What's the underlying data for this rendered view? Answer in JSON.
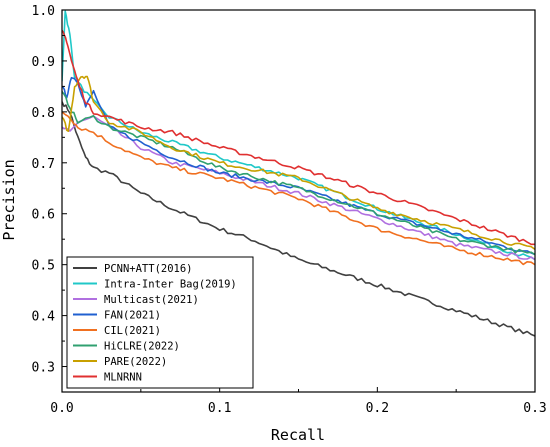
{
  "chart_data": {
    "type": "line",
    "xlabel": "Recall",
    "ylabel": "Precision",
    "xlim": [
      0.0,
      0.3
    ],
    "ylim": [
      0.25,
      1.0
    ],
    "xticks": [
      "0.0",
      "0.1",
      "0.2",
      "0.3"
    ],
    "yticks": [
      "0.3",
      "0.4",
      "0.5",
      "0.6",
      "0.7",
      "0.8",
      "0.9",
      "1.0"
    ],
    "legend_position": "bottom-left",
    "series": [
      {
        "name": "PCNN+ATT(2016)",
        "color": "#404040",
        "x": [
          0.0,
          0.005,
          0.01,
          0.015,
          0.02,
          0.03,
          0.04,
          0.05,
          0.07,
          0.1,
          0.12,
          0.15,
          0.2,
          0.25,
          0.3
        ],
        "y": [
          0.82,
          0.8,
          0.75,
          0.71,
          0.69,
          0.68,
          0.66,
          0.64,
          0.61,
          0.57,
          0.55,
          0.51,
          0.46,
          0.41,
          0.36
        ]
      },
      {
        "name": "Intra-Inter Bag(2019)",
        "color": "#20c8c8",
        "x": [
          0.0,
          0.002,
          0.005,
          0.008,
          0.012,
          0.02,
          0.03,
          0.05,
          0.07,
          0.1,
          0.15,
          0.2,
          0.25,
          0.3
        ],
        "y": [
          0.86,
          1.0,
          0.95,
          0.87,
          0.85,
          0.82,
          0.79,
          0.76,
          0.74,
          0.71,
          0.67,
          0.61,
          0.56,
          0.51
        ]
      },
      {
        "name": "Multicast(2021)",
        "color": "#b070e0",
        "x": [
          0.0,
          0.005,
          0.01,
          0.02,
          0.03,
          0.05,
          0.07,
          0.1,
          0.15,
          0.2,
          0.25,
          0.3
        ],
        "y": [
          0.77,
          0.76,
          0.78,
          0.79,
          0.77,
          0.73,
          0.7,
          0.68,
          0.64,
          0.59,
          0.54,
          0.51
        ]
      },
      {
        "name": "FAN(2021)",
        "color": "#2060d0",
        "x": [
          0.0,
          0.003,
          0.006,
          0.01,
          0.015,
          0.02,
          0.03,
          0.05,
          0.07,
          0.1,
          0.15,
          0.2,
          0.25,
          0.3
        ],
        "y": [
          0.85,
          0.83,
          0.87,
          0.86,
          0.81,
          0.84,
          0.77,
          0.74,
          0.71,
          0.68,
          0.65,
          0.6,
          0.56,
          0.52
        ]
      },
      {
        "name": "CIL(2021)",
        "color": "#f07020",
        "x": [
          0.0,
          0.005,
          0.01,
          0.02,
          0.03,
          0.05,
          0.07,
          0.1,
          0.15,
          0.2,
          0.25,
          0.3
        ],
        "y": [
          0.8,
          0.79,
          0.77,
          0.76,
          0.74,
          0.71,
          0.69,
          0.67,
          0.63,
          0.57,
          0.53,
          0.5
        ]
      },
      {
        "name": "HiCLRE(2022)",
        "color": "#30a070",
        "x": [
          0.0,
          0.005,
          0.01,
          0.02,
          0.03,
          0.05,
          0.07,
          0.1,
          0.15,
          0.2,
          0.25,
          0.3
        ],
        "y": [
          0.84,
          0.81,
          0.78,
          0.79,
          0.77,
          0.75,
          0.73,
          0.69,
          0.65,
          0.6,
          0.55,
          0.52
        ]
      },
      {
        "name": "PARE(2022)",
        "color": "#c8a000",
        "x": [
          0.0,
          0.004,
          0.008,
          0.012,
          0.016,
          0.02,
          0.03,
          0.05,
          0.07,
          0.1,
          0.15,
          0.2,
          0.25,
          0.3
        ],
        "y": [
          0.79,
          0.76,
          0.85,
          0.87,
          0.87,
          0.82,
          0.78,
          0.76,
          0.73,
          0.7,
          0.67,
          0.61,
          0.57,
          0.53
        ]
      },
      {
        "name": "MLNRNN",
        "color": "#e03030",
        "x": [
          0.0,
          0.003,
          0.006,
          0.01,
          0.015,
          0.02,
          0.03,
          0.05,
          0.07,
          0.1,
          0.15,
          0.2,
          0.25,
          0.3
        ],
        "y": [
          0.96,
          0.94,
          0.9,
          0.86,
          0.82,
          0.8,
          0.79,
          0.77,
          0.76,
          0.73,
          0.69,
          0.64,
          0.59,
          0.54
        ]
      }
    ]
  }
}
